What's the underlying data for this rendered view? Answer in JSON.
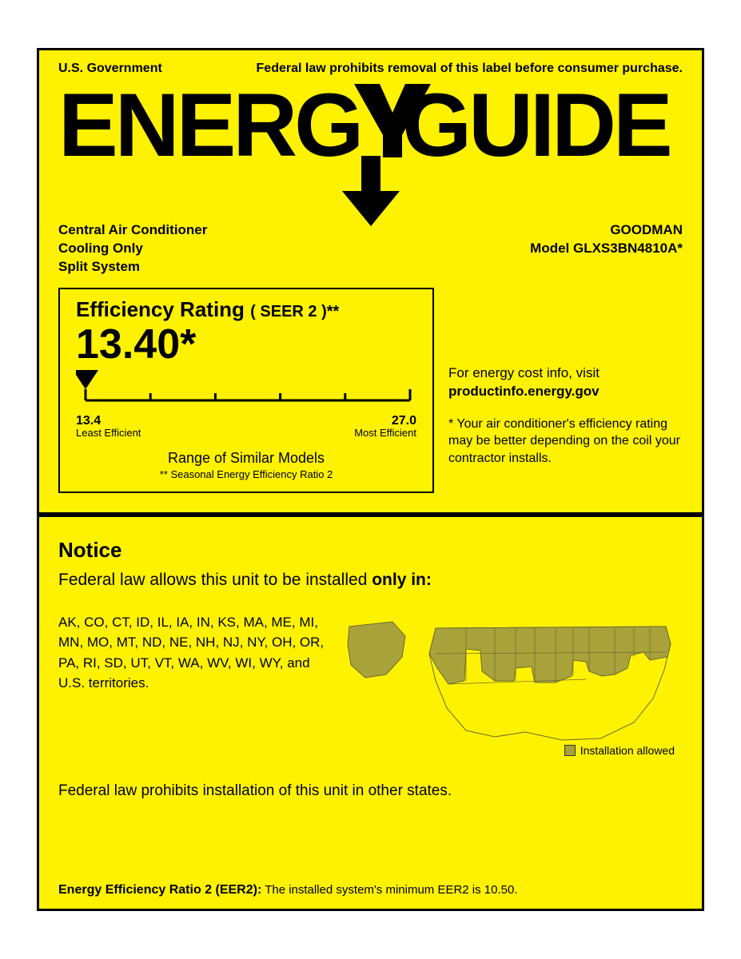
{
  "colors": {
    "background": "#fff200",
    "border": "#000000",
    "text": "#000000",
    "map_allowed": "#a9a23b",
    "map_other": "#fff200",
    "map_stroke": "#6b6b2f"
  },
  "header": {
    "gov": "U.S. Government",
    "warning": "Federal law prohibits removal of this label before consumer purchase.",
    "logo_left": "ENERG",
    "logo_right": "GUIDE"
  },
  "product": {
    "line1": "Central Air Conditioner",
    "line2": "Cooling Only",
    "line3": "Split System",
    "brand": "GOODMAN",
    "model_label": "Model GLXS3BN4810A*"
  },
  "rating": {
    "title": "Efficiency Rating",
    "sub": "( SEER 2 )**",
    "value": "13.40*",
    "scale": {
      "min": 13.4,
      "max": 27.0,
      "ticks": [
        13.4,
        16.12,
        18.84,
        21.56,
        24.28,
        27.0
      ],
      "pointer_value": 13.4,
      "min_label": "13.4",
      "max_label": "27.0",
      "min_sub": "Least Efficient",
      "max_sub": "Most Efficient"
    },
    "range_text": "Range of Similar Models",
    "range_sub": "** Seasonal Energy Efficiency Ratio 2"
  },
  "side": {
    "visit_text": "For energy cost info, visit",
    "visit_link": "productinfo.energy.gov",
    "note": "*  Your air conditioner's efficiency rating may be better depending on the coil your contractor installs."
  },
  "notice": {
    "title": "Notice",
    "line_pre": "Federal law allows this unit to be installed ",
    "line_bold": "only in:",
    "states": "AK, CO, CT, ID, IL, IA, IN, KS, MA, ME, MI, MN, MO, MT, ND, NE, NH, NJ, NY, OH, OR, PA, RI, SD, UT, VT, WA, WV, WI, WY, and U.S. territories.",
    "legend": "Installation allowed",
    "prohibit": "Federal law prohibits installation of this unit in other states."
  },
  "eer": {
    "label": "Energy Efficiency Ratio 2 (EER2):",
    "text": " The installed system's minimum EER2 is 10.50."
  }
}
